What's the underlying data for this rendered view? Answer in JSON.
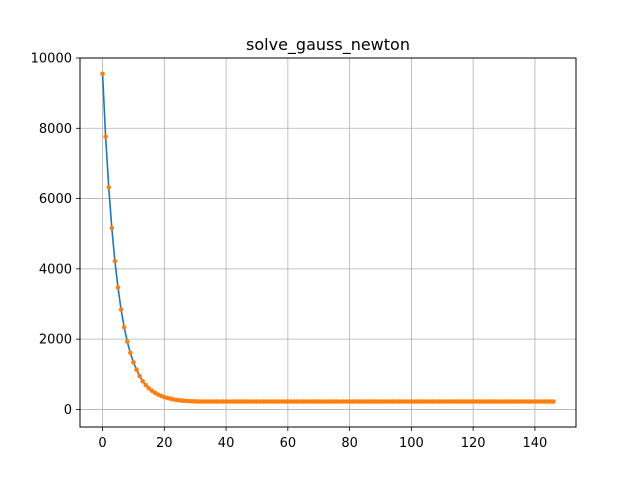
{
  "chart_data": {
    "type": "line",
    "title": "solve_gauss_newton",
    "xlabel": "",
    "ylabel": "",
    "xlim": [
      -7.3,
      153.3
    ],
    "ylim": [
      -500,
      10000
    ],
    "xticks": [
      0,
      20,
      40,
      60,
      80,
      100,
      120,
      140
    ],
    "yticks": [
      0,
      2000,
      4000,
      6000,
      8000,
      10000
    ],
    "grid": true,
    "x_start": 0,
    "x_end": 146,
    "plateau": 225,
    "decay_values": [
      9550,
      7760,
      6320,
      5160,
      4220,
      3470,
      2840,
      2340,
      1930,
      1610,
      1340,
      1130,
      950,
      800,
      690,
      600,
      530,
      470,
      420,
      385,
      350,
      325,
      305,
      285,
      270,
      258,
      248,
      242,
      236,
      232,
      228
    ],
    "series": [
      {
        "line_color": "#1f77b4",
        "marker_color": "#ff7f0e",
        "marker": "circle"
      }
    ]
  }
}
